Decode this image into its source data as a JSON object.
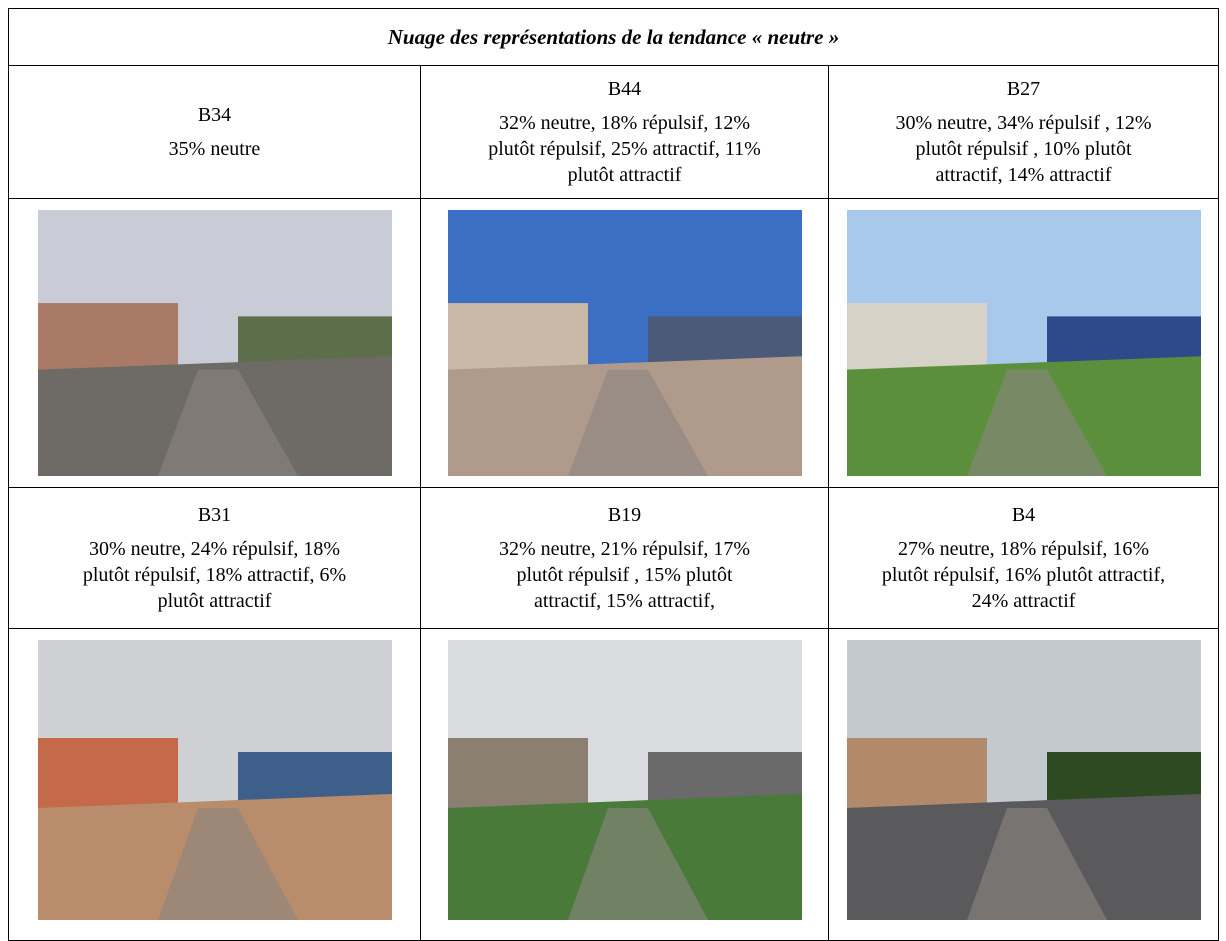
{
  "table": {
    "title": "Nuage des représentations de la tendance « neutre »",
    "rows": [
      [
        {
          "code": "B34",
          "lines": [
            "35% neutre"
          ]
        },
        {
          "code": "B44",
          "lines": [
            "32% neutre, 18% répulsif, 12%",
            "plutôt répulsif, 25% attractif, 11%",
            "plutôt attractif"
          ]
        },
        {
          "code": "B27",
          "lines": [
            "30% neutre, 34% répulsif , 12%",
            "plutôt répulsif , 10% plutôt",
            "attractif, 14% attractif"
          ]
        }
      ],
      [
        {
          "code": "B31",
          "lines": [
            "30% neutre, 24% répulsif, 18%",
            "plutôt répulsif, 18% attractif, 6%",
            "plutôt attractif"
          ]
        },
        {
          "code": "B19",
          "lines": [
            "32% neutre, 21% répulsif, 17%",
            "plutôt répulsif , 15% plutôt",
            "attractif, 15% attractif,"
          ]
        },
        {
          "code": "B4",
          "lines": [
            "27% neutre, 18% répulsif, 16%",
            "plutôt répulsif, 16% plutôt attractif,",
            "24% attractif"
          ]
        }
      ]
    ]
  }
}
